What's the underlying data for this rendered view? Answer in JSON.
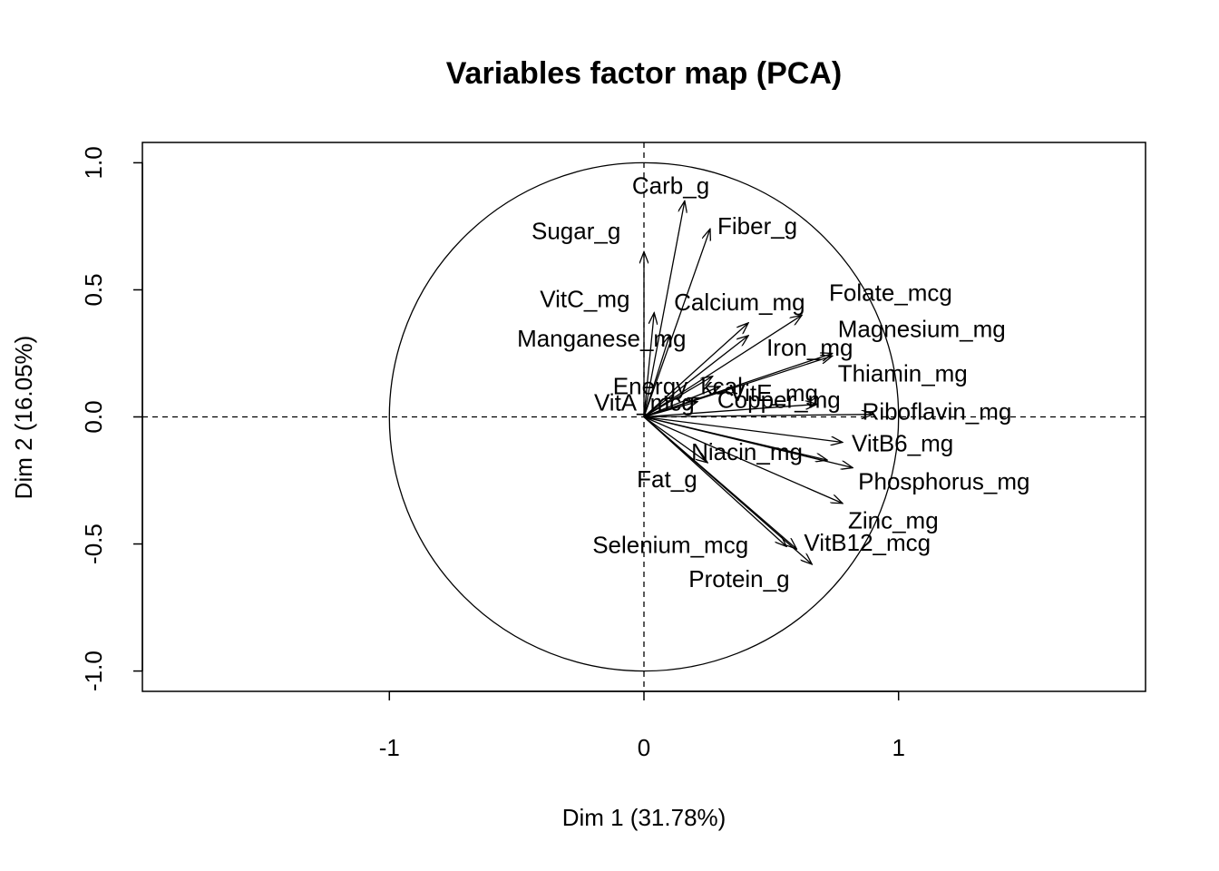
{
  "chart_data": {
    "type": "scatter",
    "title": "Variables factor map (PCA)",
    "xlabel": "Dim 1 (31.78%)",
    "ylabel": "Dim 2 (16.05%)",
    "xlim": [
      -1.97,
      1.97
    ],
    "ylim": [
      -1.08,
      1.08
    ],
    "x_ticks": [
      {
        "value": -1,
        "label": "-1"
      },
      {
        "value": 0,
        "label": "0"
      },
      {
        "value": 1,
        "label": "1"
      }
    ],
    "y_ticks": [
      {
        "value": -1.0,
        "label": "-1.0"
      },
      {
        "value": -0.5,
        "label": "-0.5"
      },
      {
        "value": 0.0,
        "label": "0.0"
      },
      {
        "value": 0.5,
        "label": "0.5"
      },
      {
        "value": 1.0,
        "label": "1.0"
      }
    ],
    "unit_circle": true,
    "reference_lines": "dashed lines at x=0 and y=0",
    "grid": false,
    "variables": [
      {
        "name": "Carb_g",
        "x": 0.16,
        "y": 0.85
      },
      {
        "name": "Fiber_g",
        "x": 0.26,
        "y": 0.74
      },
      {
        "name": "Sugar_g",
        "x": 0.0,
        "y": 0.65
      },
      {
        "name": "VitC_mg",
        "x": 0.04,
        "y": 0.41
      },
      {
        "name": "Calcium_mg",
        "x": 0.41,
        "y": 0.37
      },
      {
        "name": "Folate_mcg",
        "x": 0.62,
        "y": 0.4
      },
      {
        "name": "Manganese_mg",
        "x": 0.1,
        "y": 0.32
      },
      {
        "name": "Iron_mg",
        "x": 0.41,
        "y": 0.32
      },
      {
        "name": "Magnesium_mg",
        "x": 0.74,
        "y": 0.25
      },
      {
        "name": "Energy_kcal",
        "x": 0.27,
        "y": 0.16
      },
      {
        "name": "Thiamin_mg",
        "x": 0.74,
        "y": 0.24
      },
      {
        "name": "VitE_mg",
        "x": 0.3,
        "y": 0.12
      },
      {
        "name": "VitA_mcg",
        "x": 0.21,
        "y": 0.06
      },
      {
        "name": "Copper_mg",
        "x": 0.68,
        "y": 0.05
      },
      {
        "name": "Riboflavin_mg",
        "x": 0.9,
        "y": 0.01
      },
      {
        "name": "VitB6_mg",
        "x": 0.78,
        "y": -0.1
      },
      {
        "name": "Niacin_mg",
        "x": 0.72,
        "y": -0.17
      },
      {
        "name": "Phosphorus_mg",
        "x": 0.82,
        "y": -0.2
      },
      {
        "name": "Fat_g",
        "x": 0.25,
        "y": -0.18
      },
      {
        "name": "Zinc_mg",
        "x": 0.78,
        "y": -0.34
      },
      {
        "name": "Selenium_mcg",
        "x": 0.56,
        "y": -0.51
      },
      {
        "name": "VitB12_mcg",
        "x": 0.6,
        "y": -0.52
      },
      {
        "name": "Protein_g",
        "x": 0.66,
        "y": -0.58
      }
    ]
  }
}
